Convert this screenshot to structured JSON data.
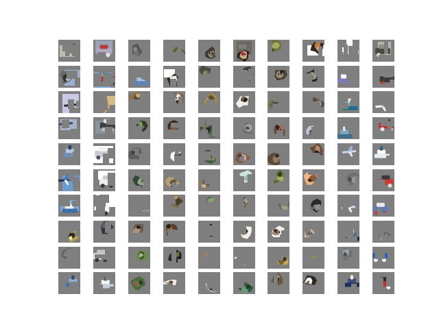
{
  "figure": {
    "background": "#ffffff",
    "mask_gray": "#7f7f7f",
    "rows": 10,
    "cols": 10
  },
  "tiles": [
    {
      "subject": "airplane",
      "colors": [
        "#8d8770",
        "#2b2b28",
        "#efeee6"
      ],
      "sky": "#b8bfae"
    },
    {
      "subject": "car",
      "colors": [
        "#b5a8c4",
        "#e8e4e8",
        "#b73b3a"
      ],
      "sky": "#9aa2b5"
    },
    {
      "subject": "masked",
      "colors": [
        "#595959",
        "#6f6f6f",
        "#8a8a8a"
      ],
      "sky": "#7f7f7f"
    },
    {
      "subject": "frog",
      "colors": [
        "#4f6b3b",
        "#a8a184",
        "#2f3a28"
      ],
      "sky": "#7f7f7f"
    },
    {
      "subject": "cat",
      "colors": [
        "#3e3c36",
        "#9a8d6e",
        "#5b5b55"
      ],
      "sky": "#7f7f7f"
    },
    {
      "subject": "dog",
      "colors": [
        "#2a2420",
        "#c6a77e",
        "#d83b3b"
      ],
      "sky": "#6e6a60"
    },
    {
      "subject": "frog",
      "colors": [
        "#6d7841",
        "#a9aa63",
        "#3f4a23"
      ],
      "sky": "#7f7f7f"
    },
    {
      "subject": "horse",
      "colors": [
        "#2b2a23",
        "#c77a3a",
        "#f2f2f2"
      ],
      "sky": "#ffffff"
    },
    {
      "subject": "ship",
      "colors": [
        "#ffffff",
        "#f7f7f7",
        "#d6d6d6"
      ],
      "sky": "#ffffff"
    },
    {
      "subject": "truck",
      "colors": [
        "#4a4a40",
        "#ddd9cc",
        "#8b8f7a"
      ],
      "sky": "#b7b5a8"
    },
    {
      "subject": "bird",
      "colors": [
        "#6b6a66",
        "#2f2e2a",
        "#a7b6d9"
      ],
      "sky": "#9fb0d5"
    },
    {
      "subject": "truck",
      "colors": [
        "#c0271f",
        "#2a2a2a",
        "#3b78c2"
      ],
      "sky": "#7ea3cf"
    },
    {
      "subject": "ship",
      "colors": [
        "#5f86b8",
        "#3e6694",
        "#a9c1de"
      ],
      "sky": "#7f7f7f"
    },
    {
      "subject": "dog",
      "colors": [
        "#2a2520",
        "#f4f1ea",
        "#8d6f52"
      ],
      "sky": "#ffffff"
    },
    {
      "subject": "masked",
      "colors": [
        "#4a4a3a",
        "#6b6a55",
        "#8a897a"
      ],
      "sky": "#7f7f7f"
    },
    {
      "subject": "masked",
      "colors": [
        "#3a3a3a",
        "#6a6a6a",
        "#999999"
      ],
      "sky": "#7f7f7f"
    },
    {
      "subject": "cat",
      "colors": [
        "#4b3f35",
        "#9b8a74",
        "#2a2622"
      ],
      "sky": "#7f7f7f"
    },
    {
      "subject": "horse",
      "colors": [
        "#2a2723",
        "#9a9a90",
        "#6f8e4d"
      ],
      "sky": "#7f7f7f"
    },
    {
      "subject": "ship",
      "colors": [
        "#7b78c9",
        "#b8b6ee",
        "#ffffff"
      ],
      "sky": "#7f7f7f"
    },
    {
      "subject": "truck",
      "colors": [
        "#3a3d37",
        "#b93c2c",
        "#9aa391"
      ],
      "sky": "#7f7f7f"
    },
    {
      "subject": "airplane",
      "colors": [
        "#2b2b33",
        "#c9c6dc",
        "#8c87a8"
      ],
      "sky": "#c9c8e5"
    },
    {
      "subject": "dog",
      "colors": [
        "#c7a56a",
        "#e4cc96",
        "#8a6a3f"
      ],
      "sky": "#d6bc84"
    },
    {
      "subject": "deer",
      "colors": [
        "#8c7650",
        "#5a4a33",
        "#c4a979"
      ],
      "sky": "#7f7f7f"
    },
    {
      "subject": "cat",
      "colors": [
        "#7d5d45",
        "#f5f2ea",
        "#3a2c22"
      ],
      "sky": "#7f7f7f"
    },
    {
      "subject": "frog",
      "colors": [
        "#9b8a4b",
        "#5b4e2a",
        "#c8b66f"
      ],
      "sky": "#7f7f7f"
    },
    {
      "subject": "dog",
      "colors": [
        "#f3f0ea",
        "#7e5a49",
        "#2b221f"
      ],
      "sky": "#7f7f7f"
    },
    {
      "subject": "deer",
      "colors": [
        "#6d7450",
        "#3c4530",
        "#a1a07a"
      ],
      "sky": "#7f7f7f"
    },
    {
      "subject": "cat",
      "colors": [
        "#5a4740",
        "#b6a28e",
        "#2f2623"
      ],
      "sky": "#7f7f7f"
    },
    {
      "subject": "ship",
      "colors": [
        "#1f6e8a",
        "#e8e8e8",
        "#79b8cf"
      ],
      "sky": "#7f7f7f"
    },
    {
      "subject": "airplane",
      "colors": [
        "#ffffff",
        "#9ca6c7",
        "#f2f2f2"
      ],
      "sky": "#7f7f7f"
    },
    {
      "subject": "airplane",
      "colors": [
        "#3d4a59",
        "#7e93a6",
        "#c7d3de"
      ],
      "sky": "#a8b3c7"
    },
    {
      "subject": "car",
      "colors": [
        "#3b3f44",
        "#b9bdc3",
        "#dcdfe3"
      ],
      "sky": "#8c9299"
    },
    {
      "subject": "frog",
      "colors": [
        "#2f3d2a",
        "#667b4e",
        "#8c9a6a"
      ],
      "sky": "#7f7f7f"
    },
    {
      "subject": "horse",
      "colors": [
        "#3a2a22",
        "#7b5a46",
        "#5f463a"
      ],
      "sky": "#7f7f7f"
    },
    {
      "subject": "deer",
      "colors": [
        "#3d4a3a",
        "#6a7a58",
        "#1f2a22"
      ],
      "sky": "#5f6c58"
    },
    {
      "subject": "masked",
      "colors": [
        "#6b6f6f",
        "#a0a6a6",
        "#4b4f4f"
      ],
      "sky": "#7f7f7f"
    },
    {
      "subject": "dog",
      "colors": [
        "#6e4a3a",
        "#a06b55",
        "#2f2320"
      ],
      "sky": "#7f7f7f"
    },
    {
      "subject": "cat",
      "colors": [
        "#c9c1d4",
        "#6f6680",
        "#2e2a33"
      ],
      "sky": "#7f7f7f"
    },
    {
      "subject": "ship",
      "colors": [
        "#3e6f8c",
        "#e6eef2",
        "#7ba9c4"
      ],
      "sky": "#7f7f7f"
    },
    {
      "subject": "truck",
      "colors": [
        "#c4302a",
        "#e8e2df",
        "#4a4a4a"
      ],
      "sky": "#7f7f7f"
    },
    {
      "subject": "ship",
      "colors": [
        "#6f8fb5",
        "#1f3c63",
        "#b5c6de"
      ],
      "sky": "#7f7f7f"
    },
    {
      "subject": "car",
      "colors": [
        "#c7ccd2",
        "#4b5159",
        "#f4f4f4"
      ],
      "sky": "#ffffff"
    },
    {
      "subject": "masked",
      "colors": [
        "#5d5d5d",
        "#7a7a7a",
        "#3c3c3c"
      ],
      "sky": "#7f7f7f"
    },
    {
      "subject": "dog",
      "colors": [
        "#f7f5f2",
        "#4b4442",
        "#b5a7a0"
      ],
      "sky": "#7f7f7f"
    },
    {
      "subject": "frog",
      "colors": [
        "#3f5f34",
        "#7c8f58",
        "#23331d"
      ],
      "sky": "#7f7f7f"
    },
    {
      "subject": "cat",
      "colors": [
        "#7b5b4c",
        "#c7a58f",
        "#3a2e28"
      ],
      "sky": "#7f7f7f"
    },
    {
      "subject": "horse",
      "colors": [
        "#5a4a3a",
        "#8f7b64",
        "#2f2721"
      ],
      "sky": "#7f7f7f"
    },
    {
      "subject": "deer",
      "colors": [
        "#6a4a35",
        "#b38a6e",
        "#2a1f18"
      ],
      "sky": "#7f7f7f"
    },
    {
      "subject": "airplane",
      "colors": [
        "#c8d6ee",
        "#a5b6d8",
        "#e7eef8"
      ],
      "sky": "#7f7f7f"
    },
    {
      "subject": "ship",
      "colors": [
        "#e6eef2",
        "#2f5a73",
        "#ffffff"
      ],
      "sky": "#7f7f7f"
    },
    {
      "subject": "airplane",
      "colors": [
        "#1f2f57",
        "#4d79b5",
        "#f1f3f6"
      ],
      "sky": "#6f9bd3"
    },
    {
      "subject": "car",
      "colors": [
        "#f0f0f0",
        "#3a3a3a",
        "#c9cbd0"
      ],
      "sky": "#ffffff"
    },
    {
      "subject": "bird",
      "colors": [
        "#2f4a3b",
        "#9aa68f",
        "#5d7552"
      ],
      "sky": "#7f7f7f"
    },
    {
      "subject": "dog",
      "colors": [
        "#b89e74",
        "#6a5a3e",
        "#3a3126"
      ],
      "sky": "#7f7f7f"
    },
    {
      "subject": "cat",
      "colors": [
        "#8a7b65",
        "#5b5143",
        "#c4b59a"
      ],
      "sky": "#7f7f7f"
    },
    {
      "subject": "deer",
      "colors": [
        "#cde6df",
        "#98b5ad",
        "#e8f4f0"
      ],
      "sky": "#7f7f7f"
    },
    {
      "subject": "frog",
      "colors": [
        "#5b6c2f",
        "#a4b05f",
        "#2f3a18"
      ],
      "sky": "#7f7f7f"
    },
    {
      "subject": "horse",
      "colors": [
        "#f2b582",
        "#8a5b3a",
        "#3a2a1f"
      ],
      "sky": "#7f7f7f"
    },
    {
      "subject": "masked",
      "colors": [
        "#6e6e6e",
        "#969696",
        "#4a4a4a"
      ],
      "sky": "#7f7f7f"
    },
    {
      "subject": "truck",
      "colors": [
        "#c83b37",
        "#d9d9d9",
        "#3a3a3a"
      ],
      "sky": "#7f7f7f"
    },
    {
      "subject": "ship",
      "colors": [
        "#3a6fa8",
        "#c9d9ee",
        "#f2f2f2"
      ],
      "sky": "#82a6d3"
    },
    {
      "subject": "car",
      "colors": [
        "#f5f5f5",
        "#3a3a3a",
        "#a9b0b7"
      ],
      "sky": "#ffffff"
    },
    {
      "subject": "bird",
      "colors": [
        "#5a7450",
        "#9fb08b",
        "#2f3f2a"
      ],
      "sky": "#7f7f7f"
    },
    {
      "subject": "deer",
      "colors": [
        "#7b6a43",
        "#4c3f27",
        "#b59f6c"
      ],
      "sky": "#7f7f7f"
    },
    {
      "subject": "frog",
      "colors": [
        "#4c6a3c",
        "#86a36c",
        "#2a3a22"
      ],
      "sky": "#7f7f7f"
    },
    {
      "subject": "cat",
      "colors": [
        "#6a5a44",
        "#b8a586",
        "#2f281f"
      ],
      "sky": "#7f7f7f"
    },
    {
      "subject": "frog",
      "colors": [
        "#5b6b4b",
        "#9aa58a",
        "#2e3a26"
      ],
      "sky": "#7f7f7f"
    },
    {
      "subject": "horse",
      "colors": [
        "#2a2a2a",
        "#8b8b8b",
        "#557548"
      ],
      "sky": "#7f7f7f"
    },
    {
      "subject": "airplane",
      "colors": [
        "#d8def6",
        "#6b79b6",
        "#f2f4fb"
      ],
      "sky": "#7f7f7f"
    },
    {
      "subject": "truck",
      "colors": [
        "#5b7db3",
        "#c43b37",
        "#e8e8e8"
      ],
      "sky": "#7f7f7f"
    },
    {
      "subject": "bird",
      "colors": [
        "#b7a34f",
        "#2f2a22",
        "#f1e3a6"
      ],
      "sky": "#7f7f7f"
    },
    {
      "subject": "masked",
      "colors": [
        "#2f3338",
        "#5c636b",
        "#7f7f7f"
      ],
      "sky": "#7f7f7f"
    },
    {
      "subject": "cat",
      "colors": [
        "#6f5b4a",
        "#a99582",
        "#2f2620"
      ],
      "sky": "#7f7f7f"
    },
    {
      "subject": "deer",
      "colors": [
        "#5a3f2a",
        "#8c6a4f",
        "#2a1f18"
      ],
      "sky": "#7f7f7f"
    },
    {
      "subject": "cat",
      "colors": [
        "#2f2b2a",
        "#b7b0ad",
        "#6b6360"
      ],
      "sky": "#7f7f7f"
    },
    {
      "subject": "dog",
      "colors": [
        "#f4eee6",
        "#c7a98a",
        "#3a2f28"
      ],
      "sky": "#7f7f7f"
    },
    {
      "subject": "dog",
      "colors": [
        "#f3efe9",
        "#9e8270",
        "#3b2f2a"
      ],
      "sky": "#7f7f7f"
    },
    {
      "subject": "cat",
      "colors": [
        "#c4b9b0",
        "#8a7c72",
        "#3a322d"
      ],
      "sky": "#7f7f7f"
    },
    {
      "subject": "ship",
      "colors": [
        "#1f2a3d",
        "#c6cfe0",
        "#5c6e8f"
      ],
      "sky": "#7f7f7f"
    },
    {
      "subject": "masked",
      "colors": [
        "#6a6a6a",
        "#8f8f8f",
        "#4a4a4a"
      ],
      "sky": "#7f7f7f"
    },
    {
      "subject": "masked",
      "colors": [
        "#5a5a5a",
        "#7f7f7f",
        "#9a9a9a"
      ],
      "sky": "#7f7f7f"
    },
    {
      "subject": "car",
      "colors": [
        "#eef0f2",
        "#3a3a3a",
        "#bfc4ca"
      ],
      "sky": "#7f7f7f"
    },
    {
      "subject": "deer",
      "colors": [
        "#6f8a4f",
        "#3f5a2f",
        "#a6b88a"
      ],
      "sky": "#7f7f7f"
    },
    {
      "subject": "horse",
      "colors": [
        "#1f1f1f",
        "#3a3a3a",
        "#5f7a3f"
      ],
      "sky": "#7f7f7f"
    },
    {
      "subject": "bird",
      "colors": [
        "#c77a3a",
        "#3a5a2f",
        "#e8c48f"
      ],
      "sky": "#7f7f7f"
    },
    {
      "subject": "cat",
      "colors": [
        "#f4ece2",
        "#b36a5a",
        "#2f2420"
      ],
      "sky": "#7f7f7f"
    },
    {
      "subject": "deer",
      "colors": [
        "#c9a65a",
        "#7a6133",
        "#3a2f1a"
      ],
      "sky": "#7f7f7f"
    },
    {
      "subject": "frog",
      "colors": [
        "#8a8f5a",
        "#c7c08a",
        "#4a4f2a"
      ],
      "sky": "#7f7f7f"
    },
    {
      "subject": "masked",
      "colors": [
        "#6f7377",
        "#9aa0a6",
        "#4a4e52"
      ],
      "sky": "#7f7f7f"
    },
    {
      "subject": "truck",
      "colors": [
        "#2f5fb3",
        "#f2f2f2",
        "#1f2a3d"
      ],
      "sky": "#7f7f7f"
    },
    {
      "subject": "ship",
      "colors": [
        "#4a6fa8",
        "#2f4a78",
        "#8fb0d8"
      ],
      "sky": "#7f7f7f"
    },
    {
      "subject": "ship",
      "colors": [
        "#c6cfd8",
        "#4a5260",
        "#f2f4f6"
      ],
      "sky": "#7f7f7f"
    },
    {
      "subject": "bird",
      "colors": [
        "#4a6a3a",
        "#7a6a4a",
        "#2a3a22"
      ],
      "sky": "#7f7f7f"
    },
    {
      "subject": "cat",
      "colors": [
        "#f4eee6",
        "#b7a490",
        "#5a4a3f"
      ],
      "sky": "#7f7f7f"
    },
    {
      "subject": "cat",
      "colors": [
        "#b7ada3",
        "#6f665e",
        "#2f2a26"
      ],
      "sky": "#7f7f7f"
    },
    {
      "subject": "frog",
      "colors": [
        "#2f5a3a",
        "#6a9a7a",
        "#1f3a26"
      ],
      "sky": "#7f7f7f"
    },
    {
      "subject": "dog",
      "colors": [
        "#6a5a3a",
        "#3a2f22",
        "#a58f63"
      ],
      "sky": "#7f7f7f"
    },
    {
      "subject": "horse",
      "colors": [
        "#2a2622",
        "#f2f2f2",
        "#7a6a5a"
      ],
      "sky": "#7f7f7f"
    },
    {
      "subject": "ship",
      "colors": [
        "#1f2f5a",
        "#f2f2f2",
        "#3a4f7a"
      ],
      "sky": "#7f7f7f"
    },
    {
      "subject": "truck",
      "colors": [
        "#c7302a",
        "#f2f2f2",
        "#2a2a2a"
      ],
      "sky": "#7f7f7f"
    }
  ]
}
